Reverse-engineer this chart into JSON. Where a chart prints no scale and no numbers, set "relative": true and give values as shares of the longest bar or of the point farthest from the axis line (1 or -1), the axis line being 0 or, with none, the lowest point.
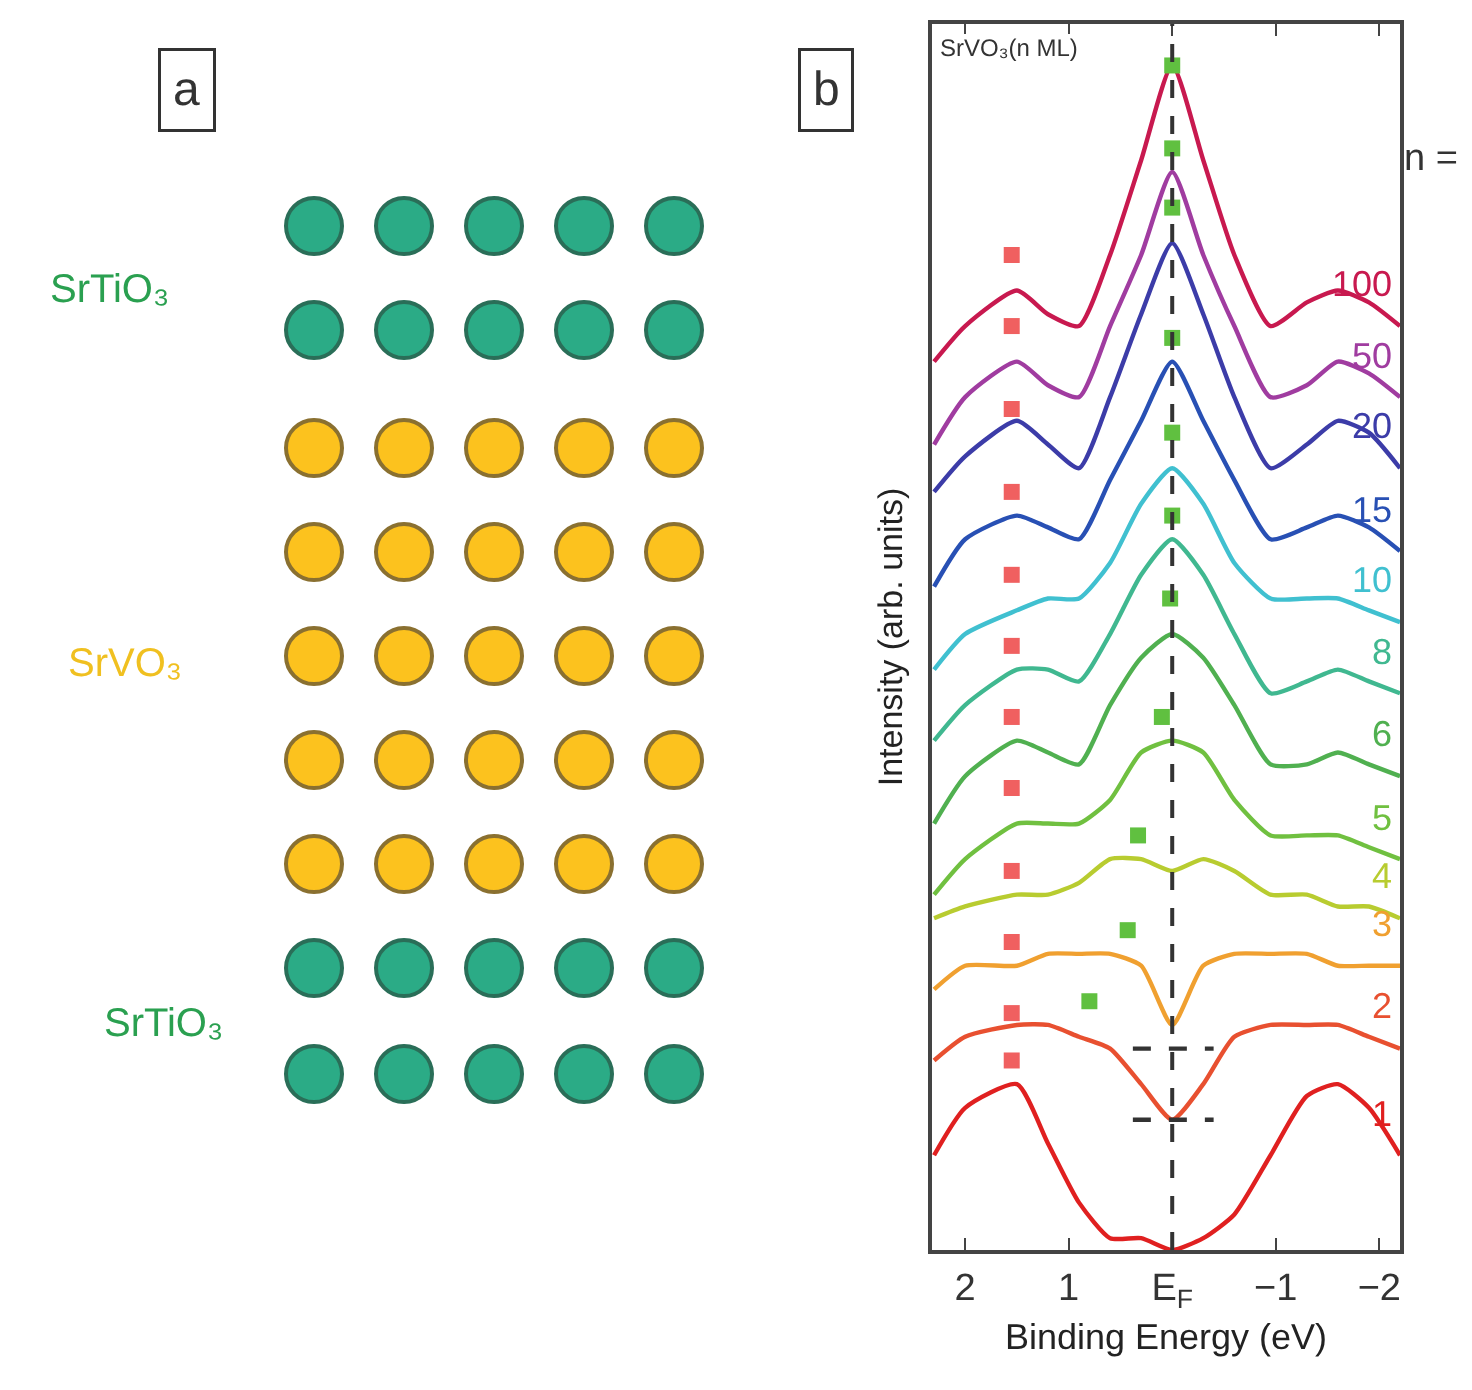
{
  "chart_data": [
    {
      "type": "other",
      "annotations": [
        "a",
        "SrTiO₃",
        "SrVO₃",
        "SrTiO₃"
      ]
    },
    {
      "type": "line",
      "relative": true,
      "xlabel": "Binding Energy (eV)",
      "ylabel": "Intensity (arb. units)",
      "annotations": [
        "b",
        "SrVO₃(n ML)",
        "n ="
      ],
      "xlim": [
        2.32,
        -2.2
      ],
      "xticks": [
        2,
        1,
        {
          "value": 0,
          "label": "E$_{F}$"
        },
        -1,
        -2
      ],
      "x": [
        2.3,
        2.0,
        1.5,
        1.2,
        0.9,
        0.6,
        0.3,
        0,
        -0.3,
        -0.6,
        -0.95,
        -1.3,
        -1.6,
        -1.9,
        -2.2
      ],
      "marker": "none",
      "line_style": "solid",
      "series": [
        {
          "name": "100",
          "color": "#c8194f",
          "values": [
            0.75,
            0.78,
            0.81,
            0.79,
            0.78,
            0.84,
            0.92,
            1.0,
            0.92,
            0.84,
            0.78,
            0.8,
            0.81,
            0.8,
            0.78
          ]
        },
        {
          "name": "50",
          "color": "#a03ca0",
          "values": [
            0.68,
            0.72,
            0.75,
            0.73,
            0.72,
            0.78,
            0.84,
            0.91,
            0.84,
            0.78,
            0.72,
            0.73,
            0.75,
            0.74,
            0.72
          ]
        },
        {
          "name": "20",
          "color": "#3c3ca8",
          "values": [
            0.64,
            0.67,
            0.7,
            0.68,
            0.66,
            0.72,
            0.79,
            0.85,
            0.79,
            0.72,
            0.66,
            0.68,
            0.7,
            0.69,
            0.66
          ]
        },
        {
          "name": "15",
          "color": "#2850b4",
          "values": [
            0.56,
            0.6,
            0.62,
            0.61,
            0.6,
            0.65,
            0.7,
            0.75,
            0.7,
            0.65,
            0.6,
            0.61,
            0.62,
            0.61,
            0.59
          ]
        },
        {
          "name": "10",
          "color": "#40c0d0",
          "values": [
            0.49,
            0.52,
            0.54,
            0.55,
            0.55,
            0.58,
            0.63,
            0.66,
            0.63,
            0.58,
            0.55,
            0.55,
            0.55,
            0.54,
            0.53
          ]
        },
        {
          "name": "8",
          "color": "#40b890",
          "values": [
            0.43,
            0.46,
            0.49,
            0.49,
            0.48,
            0.52,
            0.57,
            0.6,
            0.57,
            0.52,
            0.47,
            0.48,
            0.49,
            0.48,
            0.47
          ]
        },
        {
          "name": "6",
          "color": "#50b050",
          "values": [
            0.36,
            0.4,
            0.43,
            0.42,
            0.41,
            0.46,
            0.5,
            0.52,
            0.5,
            0.46,
            0.41,
            0.41,
            0.42,
            0.41,
            0.4
          ]
        },
        {
          "name": "5",
          "color": "#70c040",
          "values": [
            0.3,
            0.33,
            0.36,
            0.36,
            0.36,
            0.38,
            0.42,
            0.43,
            0.42,
            0.38,
            0.35,
            0.35,
            0.35,
            0.34,
            0.33
          ]
        },
        {
          "name": "4",
          "color": "#b8cc30",
          "values": [
            0.28,
            0.29,
            0.3,
            0.3,
            0.31,
            0.33,
            0.33,
            0.32,
            0.33,
            0.32,
            0.3,
            0.3,
            0.29,
            0.29,
            0.28
          ]
        },
        {
          "name": "3",
          "color": "#f0a030",
          "values": [
            0.22,
            0.24,
            0.24,
            0.25,
            0.25,
            0.25,
            0.24,
            0.19,
            0.24,
            0.25,
            0.25,
            0.25,
            0.24,
            0.24,
            0.24
          ]
        },
        {
          "name": "2",
          "color": "#e85030",
          "values": [
            0.16,
            0.18,
            0.19,
            0.19,
            0.18,
            0.17,
            0.14,
            0.11,
            0.14,
            0.18,
            0.19,
            0.19,
            0.19,
            0.18,
            0.17
          ]
        },
        {
          "name": "1",
          "color": "#e02020",
          "values": [
            0.08,
            0.12,
            0.14,
            0.09,
            0.04,
            0.01,
            0.01,
            0.0,
            0.01,
            0.03,
            0.08,
            0.13,
            0.14,
            0.12,
            0.08
          ]
        },
        {
          "type": "scatter",
          "marker": "square",
          "color": "#f06060",
          "x": [
            1.55,
            1.55,
            1.55,
            1.55,
            1.55,
            1.55,
            1.55,
            1.55,
            1.55,
            1.55,
            1.55,
            1.55
          ],
          "values": [
            0.84,
            0.78,
            0.71,
            0.64,
            0.57,
            0.51,
            0.45,
            0.39,
            0.32,
            0.26,
            0.2,
            0.16
          ]
        },
        {
          "type": "scatter",
          "marker": "square",
          "color": "#60c040",
          "x": [
            0,
            0,
            0,
            0,
            0,
            0,
            0.02,
            0.1,
            0.33,
            0.43,
            0.8
          ],
          "values": [
            1.0,
            0.93,
            0.88,
            0.77,
            0.69,
            0.62,
            0.55,
            0.45,
            0.35,
            0.27,
            0.21
          ]
        },
        {
          "type": "line",
          "line_style": "dashed",
          "color": "#333333",
          "x": [
            0.38,
            -0.4
          ],
          "values": [
            0.17,
            0.17
          ]
        },
        {
          "type": "line",
          "line_style": "dashed",
          "color": "#333333",
          "x": [
            0.38,
            -0.4
          ],
          "values": [
            0.11,
            0.11
          ]
        }
      ],
      "ref_lines": [
        {
          "axis": "x",
          "value": 0,
          "color": "#333333",
          "line_style": "dashed"
        }
      ]
    }
  ]
}
